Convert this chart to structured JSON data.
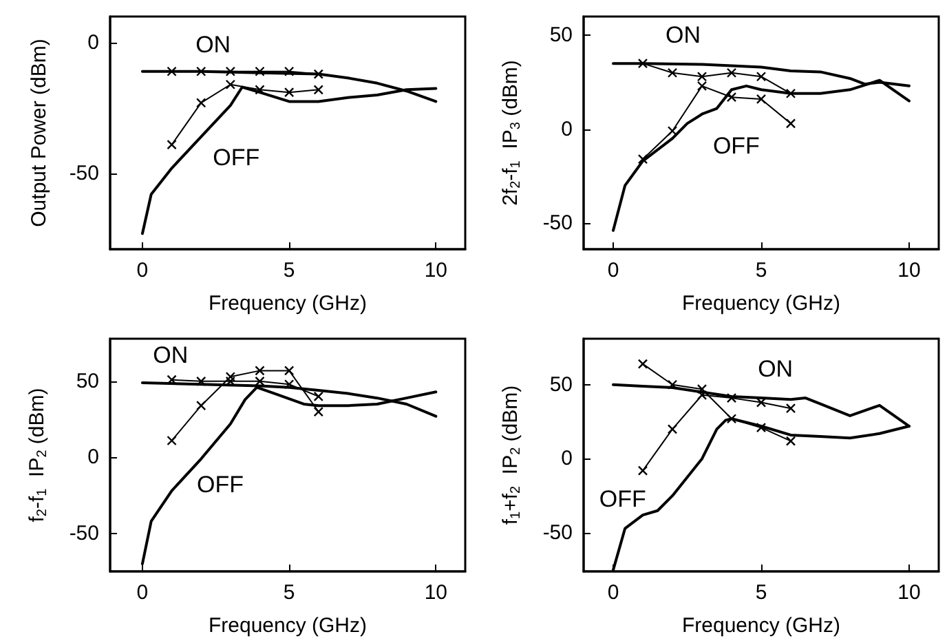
{
  "chart_data": [
    {
      "type": "line",
      "xlabel": "Frequency (GHz)",
      "ylabel": "Output Power (dBm)",
      "xlim": [
        -1.1,
        11
      ],
      "ylim": [
        -79,
        10
      ],
      "xticks": [
        0,
        5,
        10
      ],
      "yticks": [
        -50,
        0
      ],
      "grid": false,
      "line_style": "solid",
      "annotations": [
        "ON",
        "OFF"
      ],
      "series": [
        {
          "color": "#000000",
          "marker": "none",
          "x": [
            0,
            2,
            4,
            6,
            7,
            8,
            9,
            10
          ],
          "values": [
            -11,
            -11,
            -11.5,
            -12,
            -13.5,
            -15.5,
            -18.5,
            -22.5
          ]
        },
        {
          "color": "#000000",
          "marker": "none",
          "x": [
            0,
            0.3,
            1,
            2,
            3,
            3.4,
            4,
            5,
            6,
            7,
            8,
            9,
            10
          ],
          "values": [
            -73,
            -58,
            -48,
            -36,
            -24,
            -17,
            -19,
            -22.5,
            -22.5,
            -21,
            -20,
            -18,
            -17.5
          ]
        },
        {
          "color": "#000000",
          "marker": "cross",
          "x": [
            1,
            2,
            3,
            4,
            5,
            6
          ],
          "values": [
            -11,
            -11,
            -11,
            -11,
            -11,
            -12
          ]
        },
        {
          "color": "#000000",
          "marker": "cross",
          "x": [
            1,
            2,
            3,
            4,
            5,
            6
          ],
          "values": [
            -39,
            -23,
            -16,
            -18,
            -19,
            -18
          ]
        }
      ]
    },
    {
      "type": "line",
      "xlabel": "Frequency (GHz)",
      "ylabel": "2f$_{2}$-f$_{1}$  IP$_{3}$ (dBm)",
      "xlim": [
        -1,
        11
      ],
      "ylim": [
        -64,
        60
      ],
      "xticks": [
        0,
        5,
        10
      ],
      "yticks": [
        -50,
        0,
        50
      ],
      "grid": false,
      "line_style": "solid",
      "annotations": [
        "ON",
        "OFF"
      ],
      "series": [
        {
          "color": "#000000",
          "marker": "none",
          "x": [
            0,
            1,
            3,
            5,
            6,
            7,
            8,
            8.5,
            9,
            10
          ],
          "values": [
            35,
            35,
            34.5,
            33,
            31,
            30.5,
            27,
            24,
            25,
            23
          ]
        },
        {
          "color": "#000000",
          "marker": "none",
          "x": [
            0,
            0.4,
            1,
            2,
            2.5,
            3,
            3.5,
            4,
            4.5,
            5,
            6,
            7,
            8,
            9,
            10
          ],
          "values": [
            -54,
            -30,
            -17,
            -5,
            3,
            8,
            11,
            21,
            23,
            21,
            19,
            19,
            21,
            26,
            15
          ]
        },
        {
          "color": "#000000",
          "marker": "cross",
          "x": [
            1,
            2,
            3,
            4,
            5,
            6
          ],
          "values": [
            35,
            30,
            28,
            30,
            28,
            19
          ]
        },
        {
          "color": "#000000",
          "marker": "cross",
          "x": [
            1,
            2,
            3,
            4,
            5,
            6
          ],
          "values": [
            -16,
            -1,
            23,
            17,
            16,
            3
          ]
        }
      ]
    },
    {
      "type": "line",
      "xlabel": "Frequency (GHz)",
      "ylabel": "f$_{2}$-f$_{1}$  IP$_{2}$ (dBm)",
      "xlim": [
        -1.1,
        11
      ],
      "ylim": [
        -75,
        78
      ],
      "xticks": [
        0,
        5,
        10
      ],
      "yticks": [
        -50,
        0,
        50
      ],
      "grid": false,
      "line_style": "solid",
      "annotations": [
        "ON",
        "OFF"
      ],
      "series": [
        {
          "color": "#000000",
          "marker": "none",
          "x": [
            0,
            2,
            4,
            5,
            6,
            7,
            8,
            9,
            10
          ],
          "values": [
            49,
            48,
            47,
            46,
            44,
            42,
            39,
            35,
            27
          ]
        },
        {
          "color": "#000000",
          "marker": "none",
          "x": [
            0,
            0.3,
            1,
            2,
            3,
            3.5,
            3.9,
            4.5,
            5.5,
            6,
            7,
            8,
            8.5,
            9,
            10
          ],
          "values": [
            -70,
            -42,
            -22,
            -1,
            22,
            38,
            46,
            42,
            35,
            34,
            34,
            35,
            37,
            39,
            43
          ]
        },
        {
          "color": "#000000",
          "marker": "cross",
          "x": [
            1,
            2,
            3,
            4,
            5,
            6
          ],
          "values": [
            51,
            50,
            50,
            50,
            48,
            40
          ]
        },
        {
          "color": "#000000",
          "marker": "cross",
          "x": [
            1,
            2,
            3,
            4,
            5,
            6
          ],
          "values": [
            11,
            34,
            53,
            57,
            57,
            30
          ]
        }
      ]
    },
    {
      "type": "line",
      "xlabel": "Frequency (GHz)",
      "ylabel": "f$_{1}$+f$_{2}$  IP$_{2}$ (dBm)",
      "xlim": [
        -1,
        11
      ],
      "ylim": [
        -76,
        81
      ],
      "xticks": [
        0,
        5,
        10
      ],
      "yticks": [
        -50,
        0,
        50
      ],
      "grid": false,
      "line_style": "solid",
      "annotations": [
        "ON",
        "OFF"
      ],
      "series": [
        {
          "color": "#000000",
          "marker": "none",
          "x": [
            0,
            1,
            2,
            3,
            4,
            5,
            6,
            6.5,
            7,
            8,
            9,
            10
          ],
          "values": [
            50,
            49,
            48,
            45,
            42,
            41,
            40,
            41,
            37,
            29,
            36,
            22
          ]
        },
        {
          "color": "#000000",
          "marker": "none",
          "x": [
            0,
            0.4,
            1,
            1.5,
            2,
            3,
            3.5,
            3.8,
            4,
            5,
            6,
            7,
            8,
            9,
            10
          ],
          "values": [
            -75,
            -47,
            -38,
            -35,
            -25,
            0,
            20,
            26,
            27,
            22,
            16,
            15,
            14,
            17,
            22
          ]
        },
        {
          "color": "#000000",
          "marker": "cross",
          "x": [
            1,
            2,
            3,
            4,
            5,
            6
          ],
          "values": [
            64,
            50,
            47,
            27,
            21,
            12
          ]
        },
        {
          "color": "#000000",
          "marker": "cross",
          "x": [
            1,
            2,
            3,
            4,
            5,
            6
          ],
          "values": [
            -8,
            20,
            43,
            41,
            38,
            34
          ]
        }
      ]
    }
  ]
}
